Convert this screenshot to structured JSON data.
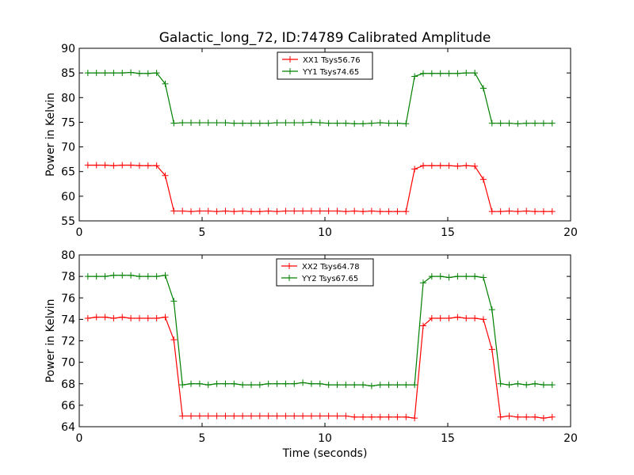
{
  "title": "Galactic_long_72, ID:74789 Calibrated Amplitude",
  "chart_data": [
    {
      "type": "line",
      "title": "Galactic_long_72, ID:74789 Calibrated Amplitude",
      "xlabel": "",
      "ylabel": "Power in Kelvin",
      "xlim": [
        0,
        20
      ],
      "ylim": [
        55,
        90
      ],
      "xticks": [
        0,
        5,
        10,
        15,
        20
      ],
      "yticks": [
        55,
        60,
        65,
        70,
        75,
        80,
        85,
        90
      ],
      "grid": false,
      "legend_position": "top-center",
      "x": [
        0.35,
        0.7,
        1.05,
        1.4,
        1.75,
        2.1,
        2.45,
        2.8,
        3.15,
        3.5,
        3.85,
        4.2,
        4.55,
        4.9,
        5.25,
        5.6,
        5.95,
        6.3,
        6.65,
        7.0,
        7.35,
        7.7,
        8.05,
        8.4,
        8.75,
        9.1,
        9.45,
        9.8,
        10.15,
        10.5,
        10.85,
        11.2,
        11.55,
        11.9,
        12.25,
        12.6,
        12.95,
        13.3,
        13.65,
        14.0,
        14.35,
        14.7,
        15.05,
        15.4,
        15.75,
        16.1,
        16.45,
        16.8,
        17.15,
        17.5,
        17.85,
        18.2,
        18.55,
        18.9,
        19.25
      ],
      "series": [
        {
          "name": "XX1 Tsys56.76",
          "color": "#ff0000",
          "values": [
            66.3,
            66.3,
            66.3,
            66.2,
            66.3,
            66.3,
            66.2,
            66.2,
            66.2,
            64.2,
            57.0,
            57.0,
            56.9,
            57.0,
            57.0,
            56.9,
            57.0,
            56.9,
            57.0,
            56.9,
            56.9,
            57.0,
            56.9,
            57.0,
            57.0,
            57.0,
            57.0,
            57.0,
            57.0,
            57.0,
            56.9,
            57.0,
            56.9,
            57.0,
            56.9,
            56.9,
            56.9,
            56.9,
            65.5,
            66.2,
            66.2,
            66.2,
            66.2,
            66.1,
            66.2,
            66.1,
            63.4,
            56.9,
            56.9,
            57.0,
            56.9,
            57.0,
            56.9,
            56.9,
            56.9
          ]
        },
        {
          "name": "YY1 Tsys74.65",
          "color": "#008000",
          "values": [
            85.0,
            85.0,
            85.0,
            85.0,
            85.0,
            85.1,
            84.9,
            84.9,
            85.0,
            82.8,
            74.8,
            74.9,
            74.9,
            74.9,
            74.9,
            74.9,
            74.9,
            74.8,
            74.8,
            74.8,
            74.8,
            74.8,
            74.9,
            74.9,
            74.9,
            74.9,
            75.0,
            74.9,
            74.8,
            74.8,
            74.8,
            74.7,
            74.7,
            74.8,
            74.9,
            74.8,
            74.8,
            74.7,
            84.3,
            84.9,
            84.9,
            84.9,
            84.9,
            84.9,
            85.0,
            85.0,
            81.9,
            74.8,
            74.8,
            74.8,
            74.7,
            74.8,
            74.8,
            74.8,
            74.8
          ]
        }
      ]
    },
    {
      "type": "line",
      "title": "",
      "xlabel": "Time (seconds)",
      "ylabel": "Power in Kelvin",
      "xlim": [
        0,
        20
      ],
      "ylim": [
        64,
        80
      ],
      "xticks": [
        0,
        5,
        10,
        15,
        20
      ],
      "yticks": [
        64,
        66,
        68,
        70,
        72,
        74,
        76,
        78,
        80
      ],
      "grid": false,
      "legend_position": "top-center",
      "x": [
        0.35,
        0.7,
        1.05,
        1.4,
        1.75,
        2.1,
        2.45,
        2.8,
        3.15,
        3.5,
        3.85,
        4.2,
        4.55,
        4.9,
        5.25,
        5.6,
        5.95,
        6.3,
        6.65,
        7.0,
        7.35,
        7.7,
        8.05,
        8.4,
        8.75,
        9.1,
        9.45,
        9.8,
        10.15,
        10.5,
        10.85,
        11.2,
        11.55,
        11.9,
        12.25,
        12.6,
        12.95,
        13.3,
        13.65,
        14.0,
        14.35,
        14.7,
        15.05,
        15.4,
        15.75,
        16.1,
        16.45,
        16.8,
        17.15,
        17.5,
        17.85,
        18.2,
        18.55,
        18.9,
        19.25
      ],
      "series": [
        {
          "name": "XX2 Tsys64.78",
          "color": "#ff0000",
          "values": [
            74.1,
            74.2,
            74.2,
            74.1,
            74.2,
            74.1,
            74.1,
            74.1,
            74.1,
            74.2,
            72.1,
            65.0,
            65.0,
            65.0,
            65.0,
            65.0,
            65.0,
            65.0,
            65.0,
            65.0,
            65.0,
            65.0,
            65.0,
            65.0,
            65.0,
            65.0,
            65.0,
            65.0,
            65.0,
            65.0,
            65.0,
            64.9,
            64.9,
            64.9,
            64.9,
            64.9,
            64.9,
            64.9,
            64.8,
            73.4,
            74.1,
            74.1,
            74.1,
            74.2,
            74.1,
            74.1,
            74.0,
            71.2,
            64.9,
            65.0,
            64.9,
            64.9,
            64.9,
            64.8,
            64.9
          ],
          "note_unused": ""
        },
        {
          "name": "YY2 Tsys67.65",
          "color": "#008000",
          "values": [
            78.0,
            78.0,
            78.0,
            78.1,
            78.1,
            78.1,
            78.0,
            78.0,
            78.0,
            78.1,
            75.7,
            67.9,
            68.0,
            68.0,
            67.9,
            68.0,
            68.0,
            68.0,
            67.9,
            67.9,
            67.9,
            68.0,
            68.0,
            68.0,
            68.0,
            68.1,
            68.0,
            68.0,
            67.9,
            67.9,
            67.9,
            67.9,
            67.9,
            67.8,
            67.9,
            67.9,
            67.9,
            67.9,
            67.9,
            77.4,
            78.0,
            78.0,
            77.9,
            78.0,
            78.0,
            78.0,
            77.9,
            74.9,
            68.0,
            67.9,
            68.0,
            67.9,
            68.0,
            67.9,
            67.9
          ]
        }
      ]
    }
  ]
}
